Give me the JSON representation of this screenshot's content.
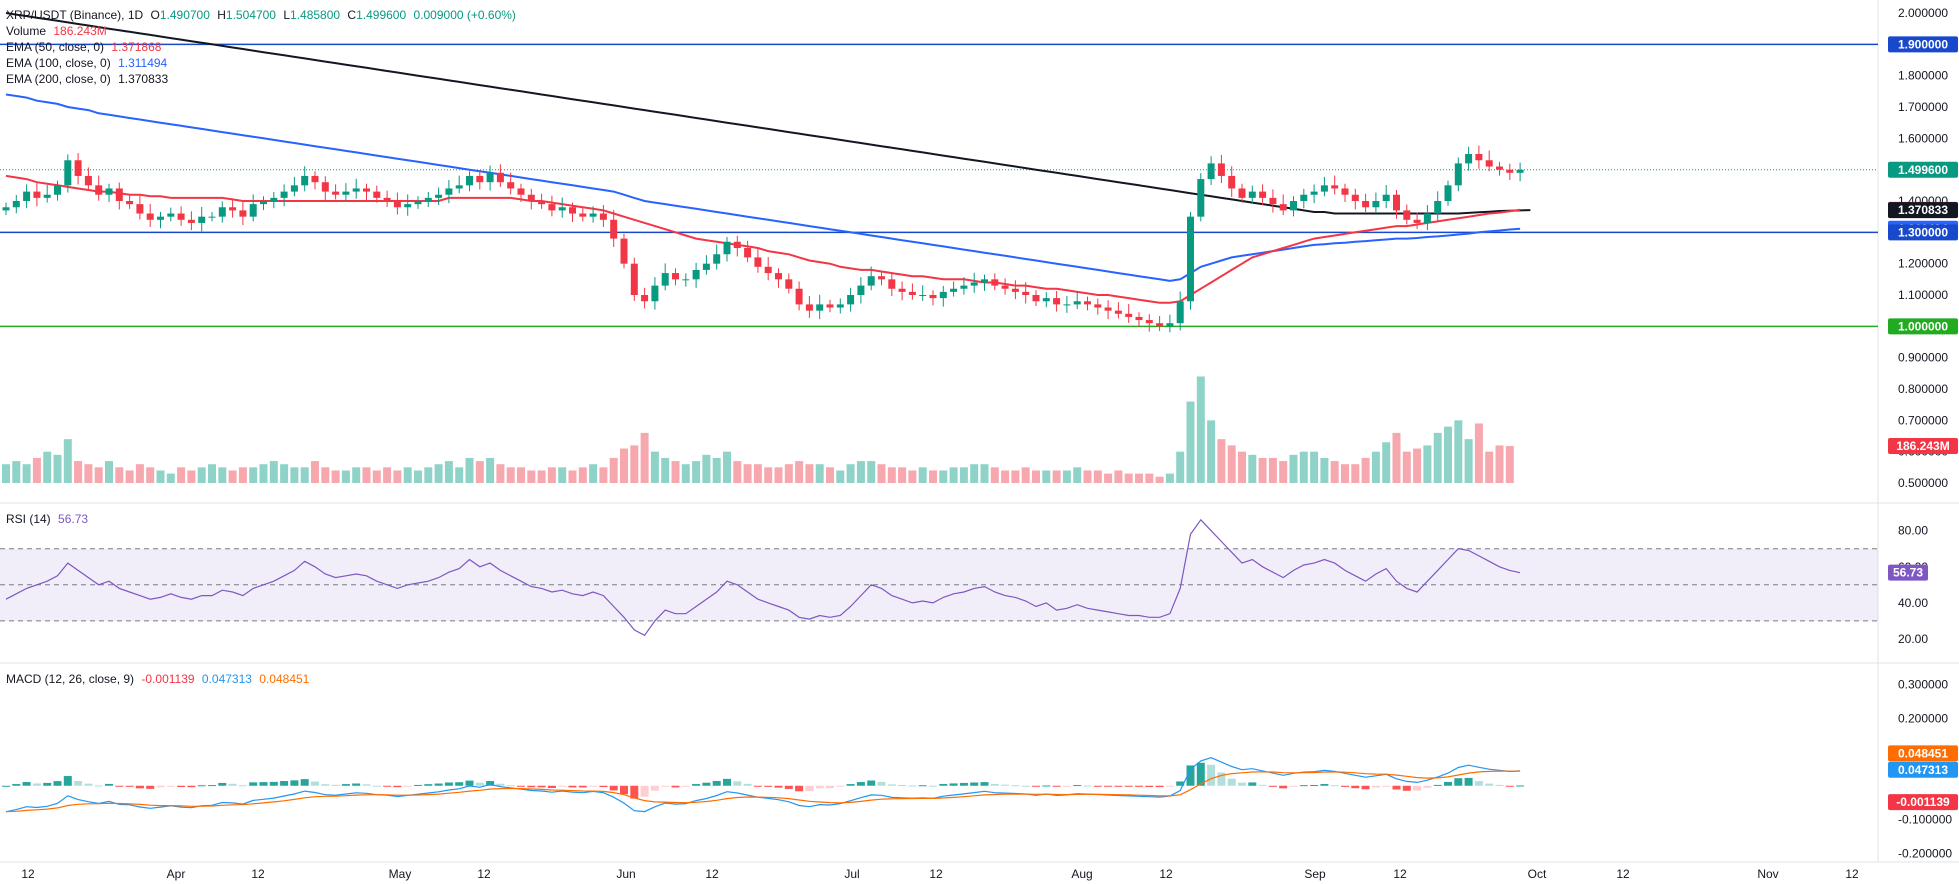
{
  "header": {
    "symbol": "XRP/USDT (Binance), 1D",
    "ohlc": {
      "open_label": "O",
      "open": "1.490700",
      "high_label": "H",
      "high": "1.504700",
      "low_label": "L",
      "low": "1.485800",
      "close_label": "C",
      "close": "1.499600",
      "change": "0.009000 (+0.60%)"
    },
    "volume_label": "Volume",
    "volume_value": "186.243M",
    "ema50_label": "EMA (50, close, 0)",
    "ema50_value": "1.371868",
    "ema100_label": "EMA (100, close, 0)",
    "ema100_value": "1.311494",
    "ema200_label": "EMA (200, close, 0)",
    "ema200_value": "1.370833"
  },
  "rsi": {
    "label": "RSI (14)",
    "value": "56.73"
  },
  "macd": {
    "label": "MACD (12, 26, close, 9)",
    "hist_value": "-0.001139",
    "macd_value": "0.047313",
    "signal_value": "0.048451"
  },
  "colors": {
    "up": "#089981",
    "down": "#f23645",
    "vol_up": "#8fd3c8",
    "vol_down": "#f7a8ae",
    "ema50": "#f23645",
    "ema100": "#2962ff",
    "ema200": "#131722",
    "hline_blue": "#1848cc",
    "hline_green": "#22ab21",
    "rsi": "#7e57c2",
    "macd": "#2196f3",
    "signal": "#ff6d00"
  },
  "chart_data": {
    "type": "candlestick",
    "price_axis": [
      "2.000000",
      "1.900000",
      "1.800000",
      "1.700000",
      "1.600000",
      "1.500000",
      "1.400000",
      "1.300000",
      "1.200000",
      "1.100000",
      "1.000000",
      "0.900000",
      "0.800000",
      "0.700000",
      "0.600000",
      "0.500000"
    ],
    "price_range": [
      0.45,
      2.0
    ],
    "x_axis": [
      "12",
      "Apr",
      "12",
      "May",
      "12",
      "Jun",
      "12",
      "Jul",
      "12",
      "Aug",
      "12",
      "Sep",
      "12",
      "Oct",
      "12",
      "Nov",
      "12"
    ],
    "horizontal_lines": [
      1.9,
      1.3,
      1.0
    ],
    "last_price": "1.499600",
    "price_tags": [
      {
        "value": "1.900000",
        "price": 1.9,
        "color": "#1848cc"
      },
      {
        "value": "1.499600",
        "price": 1.4996,
        "color": "#089981"
      },
      {
        "value": "1.371868",
        "price": 1.371868,
        "color": "#f23645"
      },
      {
        "value": "1.370833",
        "price": 1.370833,
        "color": "#131722"
      },
      {
        "value": "1.311494",
        "price": 1.311494,
        "color": "#2962ff"
      },
      {
        "value": "1.300000",
        "price": 1.3,
        "color": "#1848cc"
      },
      {
        "value": "1.000000",
        "price": 1.0,
        "color": "#22ab21"
      },
      {
        "value": "186.243M",
        "price": 0.618,
        "color": "#f23645"
      }
    ],
    "closes": [
      1.38,
      1.4,
      1.43,
      1.41,
      1.42,
      1.45,
      1.53,
      1.48,
      1.45,
      1.42,
      1.44,
      1.4,
      1.39,
      1.36,
      1.34,
      1.35,
      1.36,
      1.34,
      1.33,
      1.35,
      1.35,
      1.38,
      1.37,
      1.35,
      1.39,
      1.4,
      1.41,
      1.43,
      1.45,
      1.48,
      1.46,
      1.43,
      1.42,
      1.43,
      1.44,
      1.43,
      1.41,
      1.4,
      1.38,
      1.39,
      1.4,
      1.41,
      1.42,
      1.44,
      1.45,
      1.48,
      1.46,
      1.49,
      1.46,
      1.44,
      1.42,
      1.4,
      1.39,
      1.37,
      1.38,
      1.36,
      1.35,
      1.36,
      1.34,
      1.28,
      1.2,
      1.1,
      1.08,
      1.13,
      1.17,
      1.15,
      1.15,
      1.18,
      1.2,
      1.23,
      1.27,
      1.25,
      1.22,
      1.19,
      1.17,
      1.15,
      1.12,
      1.07,
      1.05,
      1.07,
      1.06,
      1.07,
      1.1,
      1.13,
      1.16,
      1.15,
      1.12,
      1.11,
      1.1,
      1.1,
      1.09,
      1.11,
      1.12,
      1.13,
      1.14,
      1.15,
      1.13,
      1.12,
      1.11,
      1.1,
      1.08,
      1.09,
      1.07,
      1.07,
      1.08,
      1.07,
      1.06,
      1.05,
      1.04,
      1.03,
      1.02,
      1.01,
      1.0,
      1.01,
      1.08,
      1.35,
      1.47,
      1.52,
      1.48,
      1.44,
      1.41,
      1.43,
      1.41,
      1.39,
      1.37,
      1.4,
      1.42,
      1.43,
      1.45,
      1.44,
      1.42,
      1.4,
      1.38,
      1.4,
      1.42,
      1.37,
      1.34,
      1.33,
      1.36,
      1.4,
      1.45,
      1.52,
      1.55,
      1.53,
      1.51,
      1.5,
      1.49,
      1.4996
    ],
    "volume": [
      0.56,
      0.57,
      0.56,
      0.58,
      0.6,
      0.59,
      0.64,
      0.57,
      0.56,
      0.55,
      0.57,
      0.55,
      0.54,
      0.56,
      0.55,
      0.54,
      0.53,
      0.55,
      0.54,
      0.55,
      0.56,
      0.55,
      0.54,
      0.55,
      0.55,
      0.56,
      0.57,
      0.56,
      0.55,
      0.55,
      0.57,
      0.55,
      0.54,
      0.54,
      0.55,
      0.55,
      0.54,
      0.55,
      0.54,
      0.55,
      0.54,
      0.55,
      0.56,
      0.57,
      0.55,
      0.58,
      0.57,
      0.58,
      0.56,
      0.55,
      0.55,
      0.54,
      0.54,
      0.55,
      0.55,
      0.54,
      0.55,
      0.56,
      0.55,
      0.58,
      0.61,
      0.62,
      0.66,
      0.6,
      0.58,
      0.57,
      0.56,
      0.57,
      0.59,
      0.58,
      0.6,
      0.57,
      0.56,
      0.56,
      0.55,
      0.55,
      0.56,
      0.57,
      0.56,
      0.56,
      0.55,
      0.54,
      0.56,
      0.57,
      0.57,
      0.56,
      0.55,
      0.55,
      0.54,
      0.55,
      0.54,
      0.54,
      0.55,
      0.55,
      0.56,
      0.56,
      0.55,
      0.54,
      0.54,
      0.55,
      0.54,
      0.54,
      0.54,
      0.54,
      0.55,
      0.54,
      0.54,
      0.53,
      0.54,
      0.53,
      0.53,
      0.53,
      0.52,
      0.53,
      0.6,
      0.76,
      0.84,
      0.7,
      0.64,
      0.62,
      0.6,
      0.59,
      0.58,
      0.58,
      0.57,
      0.59,
      0.6,
      0.6,
      0.58,
      0.57,
      0.56,
      0.56,
      0.58,
      0.6,
      0.63,
      0.66,
      0.6,
      0.61,
      0.62,
      0.66,
      0.68,
      0.7,
      0.64,
      0.69,
      0.6,
      0.62,
      0.618
    ],
    "ema50": [
      1.48,
      1.475,
      1.47,
      1.46,
      1.455,
      1.45,
      1.445,
      1.44,
      1.435,
      1.43,
      1.43,
      1.425,
      1.42,
      1.42,
      1.415,
      1.415,
      1.41,
      1.41,
      1.41,
      1.41,
      1.41,
      1.41,
      1.405,
      1.4,
      1.4,
      1.4,
      1.4,
      1.4,
      1.4,
      1.4,
      1.4,
      1.4,
      1.4,
      1.4,
      1.4,
      1.4,
      1.4,
      1.4,
      1.4,
      1.4,
      1.4,
      1.4,
      1.4,
      1.41,
      1.41,
      1.41,
      1.41,
      1.41,
      1.41,
      1.41,
      1.405,
      1.4,
      1.4,
      1.395,
      1.39,
      1.385,
      1.38,
      1.375,
      1.37,
      1.36,
      1.35,
      1.34,
      1.33,
      1.32,
      1.31,
      1.3,
      1.29,
      1.28,
      1.275,
      1.27,
      1.265,
      1.26,
      1.255,
      1.25,
      1.24,
      1.235,
      1.23,
      1.22,
      1.21,
      1.205,
      1.2,
      1.19,
      1.185,
      1.18,
      1.18,
      1.175,
      1.17,
      1.165,
      1.16,
      1.16,
      1.155,
      1.15,
      1.15,
      1.15,
      1.145,
      1.14,
      1.14,
      1.135,
      1.13,
      1.13,
      1.125,
      1.12,
      1.12,
      1.115,
      1.11,
      1.105,
      1.1,
      1.1,
      1.095,
      1.09,
      1.085,
      1.08,
      1.075,
      1.075,
      1.08,
      1.1,
      1.12,
      1.14,
      1.16,
      1.18,
      1.2,
      1.22,
      1.23,
      1.24,
      1.25,
      1.26,
      1.27,
      1.28,
      1.285,
      1.29,
      1.295,
      1.3,
      1.305,
      1.31,
      1.315,
      1.32,
      1.32,
      1.325,
      1.33,
      1.335,
      1.34,
      1.345,
      1.35,
      1.355,
      1.36,
      1.363,
      1.367,
      1.371868
    ],
    "ema100": [
      1.74,
      1.735,
      1.73,
      1.72,
      1.715,
      1.71,
      1.7,
      1.695,
      1.69,
      1.68,
      1.675,
      1.67,
      1.665,
      1.66,
      1.655,
      1.65,
      1.645,
      1.64,
      1.635,
      1.63,
      1.625,
      1.62,
      1.615,
      1.61,
      1.605,
      1.6,
      1.595,
      1.59,
      1.585,
      1.58,
      1.575,
      1.57,
      1.565,
      1.56,
      1.555,
      1.55,
      1.545,
      1.54,
      1.535,
      1.53,
      1.525,
      1.52,
      1.515,
      1.51,
      1.505,
      1.5,
      1.495,
      1.49,
      1.485,
      1.48,
      1.475,
      1.47,
      1.465,
      1.46,
      1.455,
      1.45,
      1.445,
      1.44,
      1.435,
      1.43,
      1.42,
      1.41,
      1.4,
      1.395,
      1.39,
      1.385,
      1.38,
      1.375,
      1.37,
      1.365,
      1.36,
      1.355,
      1.35,
      1.345,
      1.34,
      1.335,
      1.33,
      1.325,
      1.32,
      1.315,
      1.31,
      1.305,
      1.3,
      1.295,
      1.29,
      1.285,
      1.28,
      1.275,
      1.27,
      1.265,
      1.26,
      1.255,
      1.25,
      1.245,
      1.24,
      1.235,
      1.23,
      1.225,
      1.22,
      1.215,
      1.21,
      1.205,
      1.2,
      1.195,
      1.19,
      1.185,
      1.18,
      1.175,
      1.17,
      1.165,
      1.16,
      1.155,
      1.15,
      1.145,
      1.15,
      1.17,
      1.19,
      1.2,
      1.21,
      1.22,
      1.225,
      1.23,
      1.235,
      1.24,
      1.245,
      1.25,
      1.255,
      1.26,
      1.262,
      1.265,
      1.267,
      1.27,
      1.272,
      1.275,
      1.277,
      1.28,
      1.28,
      1.282,
      1.285,
      1.287,
      1.29,
      1.293,
      1.296,
      1.3,
      1.303,
      1.306,
      1.309,
      1.311494
    ],
    "ema200": [
      2.0,
      1.995,
      1.99,
      1.985,
      1.98,
      1.975,
      1.97,
      1.965,
      1.96,
      1.955,
      1.95,
      1.945,
      1.94,
      1.935,
      1.93,
      1.925,
      1.92,
      1.915,
      1.91,
      1.905,
      1.9,
      1.895,
      1.89,
      1.885,
      1.88,
      1.875,
      1.87,
      1.865,
      1.86,
      1.855,
      1.85,
      1.845,
      1.84,
      1.835,
      1.83,
      1.825,
      1.82,
      1.815,
      1.81,
      1.805,
      1.8,
      1.795,
      1.79,
      1.785,
      1.78,
      1.775,
      1.77,
      1.765,
      1.76,
      1.755,
      1.75,
      1.745,
      1.74,
      1.735,
      1.73,
      1.725,
      1.72,
      1.715,
      1.71,
      1.705,
      1.7,
      1.695,
      1.69,
      1.685,
      1.68,
      1.675,
      1.67,
      1.665,
      1.66,
      1.655,
      1.65,
      1.645,
      1.64,
      1.635,
      1.63,
      1.625,
      1.62,
      1.615,
      1.61,
      1.605,
      1.6,
      1.595,
      1.59,
      1.585,
      1.58,
      1.575,
      1.57,
      1.565,
      1.56,
      1.555,
      1.55,
      1.545,
      1.54,
      1.535,
      1.53,
      1.525,
      1.52,
      1.515,
      1.51,
      1.505,
      1.5,
      1.495,
      1.49,
      1.485,
      1.48,
      1.475,
      1.47,
      1.465,
      1.46,
      1.455,
      1.45,
      1.445,
      1.44,
      1.435,
      1.43,
      1.425,
      1.42,
      1.415,
      1.41,
      1.405,
      1.4,
      1.395,
      1.39,
      1.385,
      1.38,
      1.375,
      1.37,
      1.365,
      1.365,
      1.36,
      1.36,
      1.36,
      1.36,
      1.36,
      1.36,
      1.36,
      1.36,
      1.36,
      1.36,
      1.36,
      1.36,
      1.36,
      1.362,
      1.364,
      1.366,
      1.368,
      1.369,
      1.37,
      1.370833
    ],
    "rsi_axis": [
      "80.00",
      "60.00",
      "40.00",
      "20.00"
    ],
    "rsi_levels": [
      70,
      50,
      30
    ],
    "rsi_values": [
      42,
      45,
      48,
      50,
      52,
      55,
      62,
      58,
      54,
      50,
      52,
      48,
      46,
      44,
      42,
      43,
      45,
      43,
      42,
      44,
      44,
      47,
      46,
      44,
      48,
      50,
      52,
      55,
      58,
      63,
      60,
      56,
      54,
      55,
      56,
      55,
      52,
      50,
      48,
      50,
      51,
      52,
      54,
      57,
      59,
      64,
      60,
      62,
      58,
      55,
      52,
      49,
      48,
      46,
      47,
      45,
      44,
      46,
      44,
      38,
      32,
      25,
      22,
      30,
      36,
      34,
      34,
      38,
      42,
      46,
      52,
      50,
      46,
      42,
      40,
      38,
      36,
      32,
      31,
      33,
      32,
      33,
      38,
      44,
      50,
      48,
      44,
      42,
      40,
      41,
      40,
      43,
      45,
      46,
      48,
      49,
      46,
      44,
      43,
      41,
      38,
      40,
      36,
      37,
      39,
      37,
      36,
      35,
      34,
      33,
      33,
      32,
      32,
      34,
      48,
      78,
      86,
      80,
      74,
      68,
      62,
      64,
      60,
      57,
      54,
      58,
      61,
      62,
      64,
      62,
      58,
      55,
      52,
      56,
      59,
      52,
      48,
      46,
      52,
      58,
      64,
      70,
      69,
      66,
      63,
      60,
      58,
      56.73
    ],
    "macd_axis": [
      "0.300000",
      "0.200000",
      "0.100000",
      "-0.100000",
      "-0.200000"
    ],
    "macd_range": [
      -0.22,
      0.34
    ],
    "macd_tags": [
      {
        "value": "0.048451",
        "level": 0.048451,
        "color": "#ff6d00"
      },
      {
        "value": "0.047313",
        "level": 0.047313,
        "color": "#2196f3"
      },
      {
        "value": "-0.001139",
        "level": -0.001139,
        "color": "#f23645"
      }
    ]
  }
}
